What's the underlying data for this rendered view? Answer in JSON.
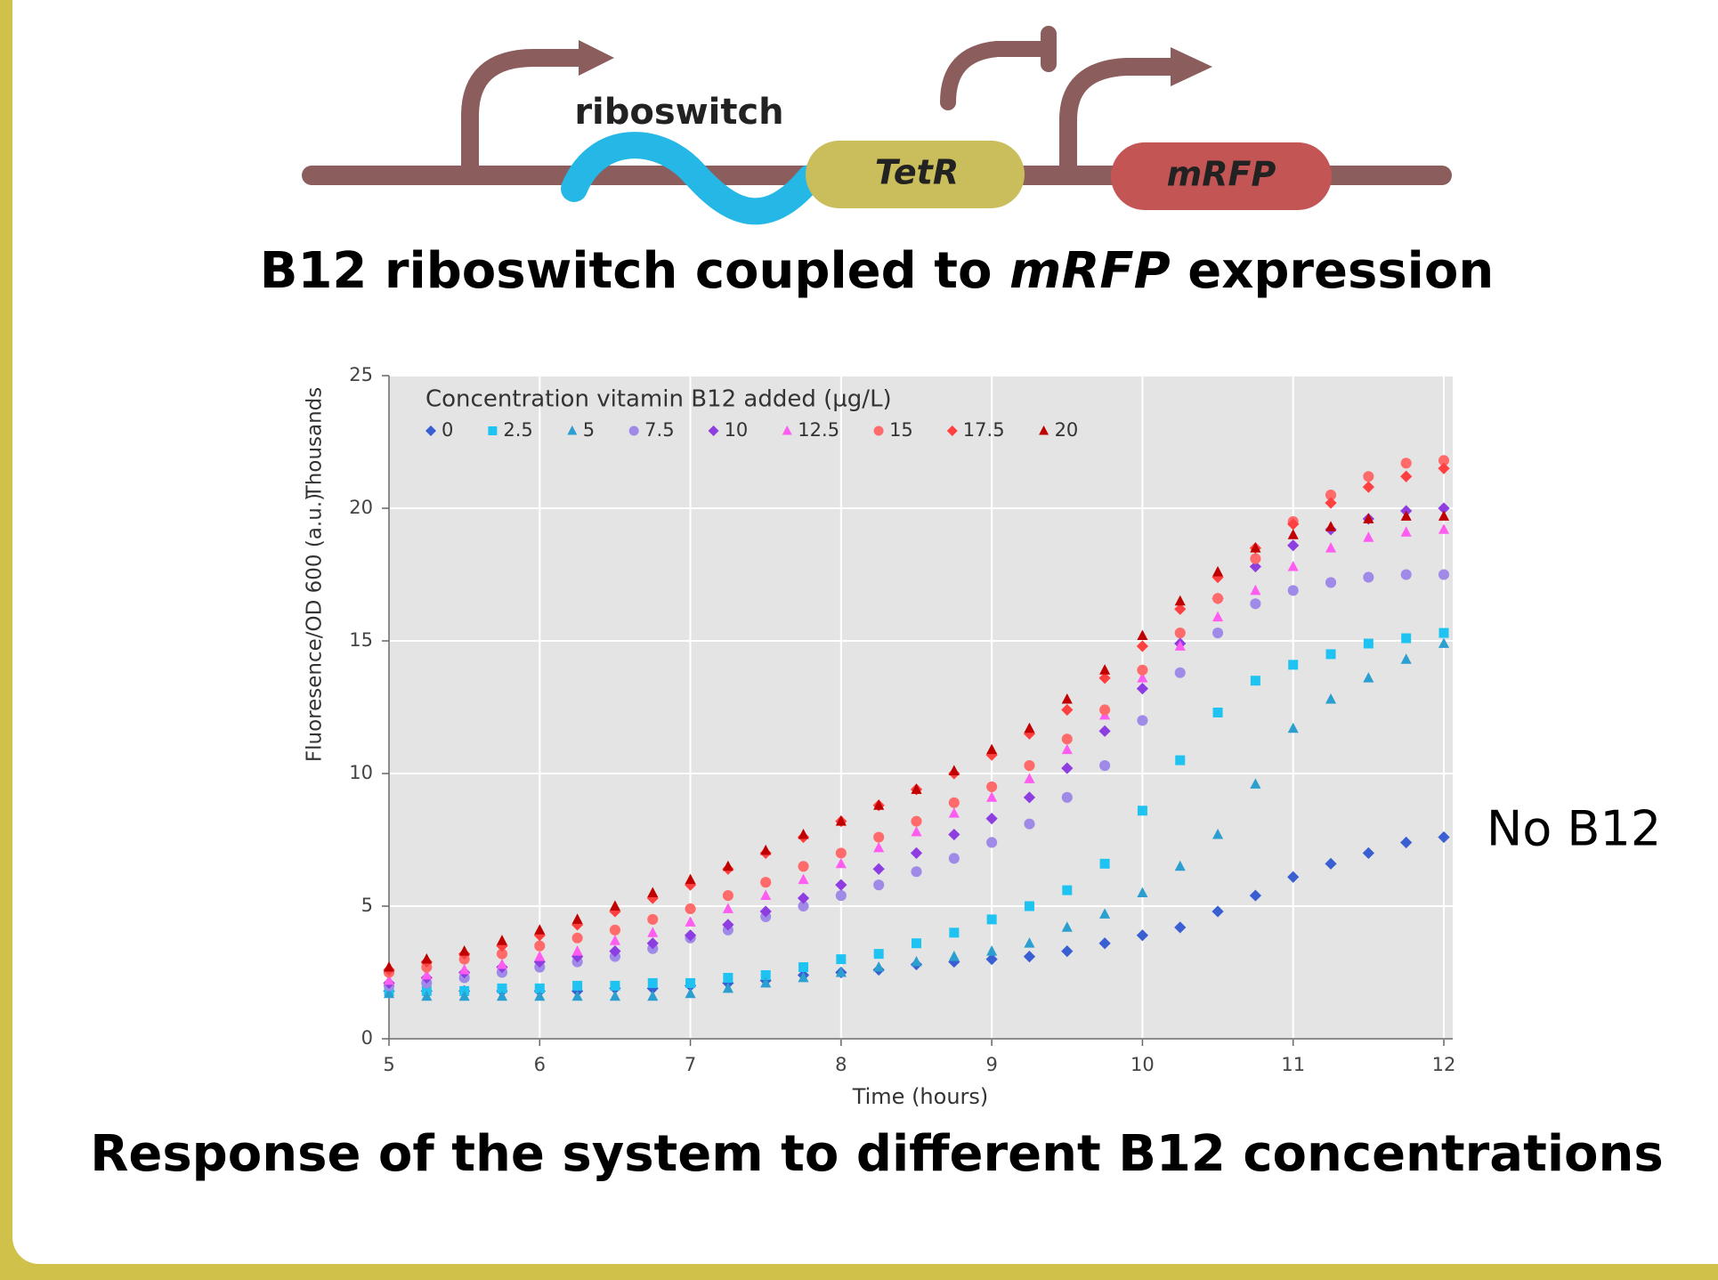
{
  "diagram": {
    "riboswitch": "riboswitch",
    "tetr": "TetR",
    "mrfp": "mRFP",
    "caption": [
      "B12 riboswitch coupled to ",
      "mRFP",
      " expression"
    ]
  },
  "chart_data": {
    "type": "scatter",
    "title": "Response of the system to different B12 concentrations",
    "x_label": "Time (hours)",
    "y_label": "Fluoresence/OD 600 (a.u.)",
    "y_unit": "Thousands",
    "legend_title": "Concentration vitamin B12 added (µg/L)",
    "legend": "upper left",
    "annotation": "No B12",
    "grid": true,
    "xlim": [
      5,
      12
    ],
    "xticks": [
      5,
      6,
      7,
      8,
      9,
      10,
      11,
      12
    ],
    "ylim": [
      0,
      25
    ],
    "yticks": [
      0,
      5,
      10,
      15,
      20,
      25
    ],
    "x": [
      5,
      5.25,
      5.5,
      5.75,
      6,
      6.25,
      6.5,
      6.75,
      7,
      7.25,
      7.5,
      7.75,
      8,
      8.25,
      8.5,
      8.75,
      9,
      9.25,
      9.5,
      9.75,
      10,
      10.25,
      10.5,
      10.75,
      11,
      11.25,
      11.5,
      11.75,
      12
    ],
    "series": [
      {
        "name": "0",
        "color": "#3a5fd2",
        "marker": "diamond",
        "values": [
          1.8,
          1.8,
          1.8,
          1.8,
          1.8,
          1.8,
          1.9,
          1.9,
          2.0,
          2.1,
          2.2,
          2.4,
          2.5,
          2.6,
          2.8,
          2.9,
          3.0,
          3.1,
          3.3,
          3.6,
          3.9,
          4.2,
          4.8,
          5.4,
          6.1,
          6.6,
          7.0,
          7.4,
          7.6
        ]
      },
      {
        "name": "2.5",
        "color": "#1ec3f2",
        "marker": "square",
        "values": [
          1.8,
          1.8,
          1.8,
          1.9,
          1.9,
          2.0,
          2.0,
          2.1,
          2.1,
          2.3,
          2.4,
          2.7,
          3.0,
          3.2,
          3.6,
          4.0,
          4.5,
          5.0,
          5.6,
          6.6,
          8.6,
          10.5,
          12.3,
          13.5,
          14.1,
          14.5,
          14.9,
          15.1,
          15.3
        ]
      },
      {
        "name": "5",
        "color": "#2a9fd0",
        "marker": "triangle",
        "values": [
          1.7,
          1.6,
          1.6,
          1.6,
          1.6,
          1.6,
          1.6,
          1.6,
          1.7,
          1.9,
          2.1,
          2.3,
          2.5,
          2.7,
          2.9,
          3.1,
          3.3,
          3.6,
          4.2,
          4.7,
          5.5,
          6.5,
          7.7,
          9.6,
          11.7,
          12.8,
          13.6,
          14.3,
          14.9
        ]
      },
      {
        "name": "7.5",
        "color": "#a08ae8",
        "marker": "circle",
        "values": [
          2.0,
          2.1,
          2.3,
          2.5,
          2.7,
          2.9,
          3.1,
          3.4,
          3.8,
          4.1,
          4.6,
          5.0,
          5.4,
          5.8,
          6.3,
          6.8,
          7.4,
          8.1,
          9.1,
          10.3,
          12.0,
          13.8,
          15.3,
          16.4,
          16.9,
          17.2,
          17.4,
          17.5,
          17.5
        ]
      },
      {
        "name": "10",
        "color": "#8e3de0",
        "marker": "diamond",
        "values": [
          2.1,
          2.3,
          2.5,
          2.7,
          2.9,
          3.1,
          3.3,
          3.6,
          3.9,
          4.3,
          4.8,
          5.3,
          5.8,
          6.4,
          7.0,
          7.7,
          8.3,
          9.1,
          10.2,
          11.6,
          13.2,
          14.9,
          16.6,
          17.8,
          18.6,
          19.2,
          19.6,
          19.9,
          20.0
        ]
      },
      {
        "name": "12.5",
        "color": "#ff5cf0",
        "marker": "triangle",
        "values": [
          2.2,
          2.4,
          2.6,
          2.8,
          3.1,
          3.3,
          3.7,
          4.0,
          4.4,
          4.9,
          5.4,
          6.0,
          6.6,
          7.2,
          7.8,
          8.5,
          9.1,
          9.8,
          10.9,
          12.2,
          13.6,
          14.8,
          15.9,
          16.9,
          17.8,
          18.5,
          18.9,
          19.1,
          19.2
        ]
      },
      {
        "name": "15",
        "color": "#ff6b6b",
        "marker": "circle",
        "values": [
          2.5,
          2.7,
          3.0,
          3.2,
          3.5,
          3.8,
          4.1,
          4.5,
          4.9,
          5.4,
          5.9,
          6.5,
          7.0,
          7.6,
          8.2,
          8.9,
          9.5,
          10.3,
          11.3,
          12.4,
          13.9,
          15.3,
          16.6,
          18.1,
          19.5,
          20.5,
          21.2,
          21.7,
          21.8
        ]
      },
      {
        "name": "17.5",
        "color": "#ff4040",
        "marker": "diamond",
        "values": [
          2.6,
          2.9,
          3.2,
          3.5,
          3.9,
          4.3,
          4.8,
          5.3,
          5.8,
          6.4,
          7.0,
          7.6,
          8.2,
          8.8,
          9.4,
          10.0,
          10.7,
          11.5,
          12.4,
          13.6,
          14.8,
          16.2,
          17.4,
          18.5,
          19.4,
          20.2,
          20.8,
          21.2,
          21.5
        ]
      },
      {
        "name": "20",
        "color": "#c00000",
        "marker": "triangle",
        "values": [
          2.7,
          3.0,
          3.3,
          3.7,
          4.1,
          4.5,
          5.0,
          5.5,
          6.0,
          6.5,
          7.1,
          7.7,
          8.2,
          8.8,
          9.4,
          10.1,
          10.9,
          11.7,
          12.8,
          13.9,
          15.2,
          16.5,
          17.6,
          18.5,
          19.0,
          19.3,
          19.6,
          19.7,
          19.7
        ]
      }
    ]
  }
}
